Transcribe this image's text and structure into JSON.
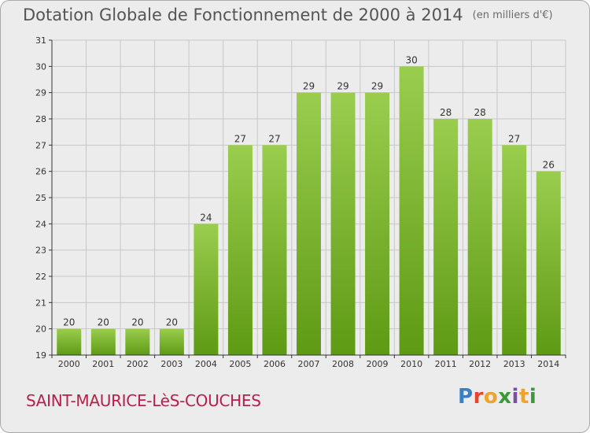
{
  "header": {
    "title": "Dotation Globale de Fonctionnement de 2000 à 2014",
    "unit": "(en milliers d'€)"
  },
  "footer": {
    "commune": "SAINT-MAURICE-LèS-COUCHES"
  },
  "logo": {
    "text": "Proxiti",
    "colors": [
      "#3a7fc1",
      "#e8452c",
      "#f0a22b",
      "#3a9a3a",
      "#7a4fa0",
      "#f0a22b",
      "#3a9a3a"
    ]
  },
  "colors": {
    "bar_top": "#9acd4e",
    "bar_bottom": "#5e9a14",
    "axis": "#333333",
    "grid": "#c8c8c8"
  },
  "chart_data": {
    "type": "bar",
    "categories": [
      "2000",
      "2001",
      "2002",
      "2003",
      "2004",
      "2005",
      "2006",
      "2007",
      "2008",
      "2009",
      "2010",
      "2011",
      "2012",
      "2013",
      "2014"
    ],
    "values": [
      20,
      20,
      20,
      20,
      24,
      27,
      27,
      29,
      29,
      29,
      30,
      28,
      28,
      27,
      26
    ],
    "title": "Dotation Globale de Fonctionnement de 2000 à 2014",
    "ylim": [
      19,
      31
    ],
    "yticks": [
      19,
      20,
      21,
      22,
      23,
      24,
      25,
      26,
      27,
      28,
      29,
      30,
      31
    ],
    "grid": true,
    "data_labels": true
  }
}
